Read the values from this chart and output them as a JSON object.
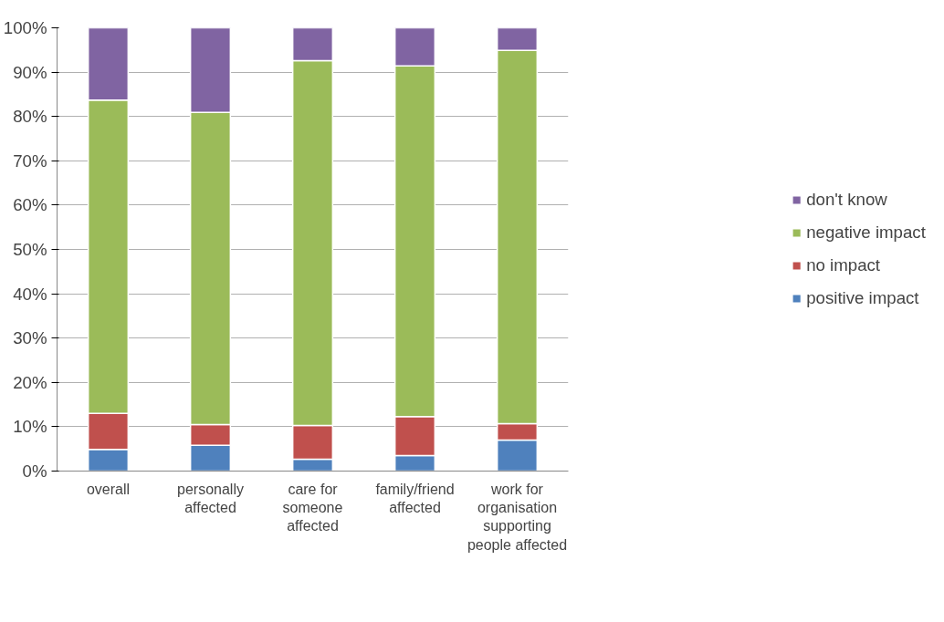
{
  "chart_data": {
    "type": "bar",
    "stacked": true,
    "categories": [
      "overall",
      "personally\naffected",
      "care for\nsomeone\naffected",
      "family/friend\naffected",
      "work for\norganisation\nsupporting\npeople affected"
    ],
    "series": [
      {
        "name": "positive impact",
        "color": "#4f81bd",
        "values": [
          4.9,
          5.8,
          2.7,
          3.5,
          7.0
        ]
      },
      {
        "name": "no impact",
        "color": "#c0504d",
        "values": [
          8.1,
          4.7,
          7.6,
          8.8,
          3.7
        ]
      },
      {
        "name": "negative impact",
        "color": "#9bbb59",
        "values": [
          70.7,
          70.4,
          82.3,
          79.1,
          84.2
        ]
      },
      {
        "name": "don't know",
        "color": "#8064a2",
        "values": [
          16.3,
          19.1,
          7.4,
          8.6,
          5.1
        ]
      }
    ],
    "ylim": [
      0,
      100
    ],
    "yticks": [
      {
        "value": 0,
        "label": "0%"
      },
      {
        "value": 10,
        "label": "10%"
      },
      {
        "value": 20,
        "label": "20%"
      },
      {
        "value": 30,
        "label": "30%"
      },
      {
        "value": 40,
        "label": "40%"
      },
      {
        "value": 50,
        "label": "50%"
      },
      {
        "value": 60,
        "label": "60%"
      },
      {
        "value": 70,
        "label": "70%"
      },
      {
        "value": 80,
        "label": "80%"
      },
      {
        "value": 90,
        "label": "90%"
      },
      {
        "value": 100,
        "label": "100%"
      }
    ],
    "grid": "y",
    "legend": "right"
  }
}
